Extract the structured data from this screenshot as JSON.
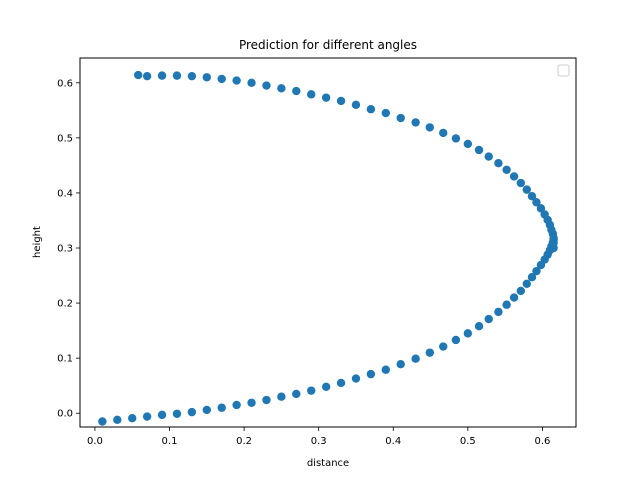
{
  "chart_data": {
    "type": "scatter",
    "title": "Prediction for different angles",
    "xlabel": "distance",
    "ylabel": "height",
    "xlim": [
      -0.02,
      0.645
    ],
    "ylim": [
      -0.025,
      0.645
    ],
    "xticks": [
      0.0,
      0.1,
      0.2,
      0.3,
      0.4,
      0.5,
      0.6
    ],
    "xtick_labels": [
      "0.0",
      "0.1",
      "0.2",
      "0.3",
      "0.4",
      "0.5",
      "0.6"
    ],
    "yticks": [
      0.0,
      0.1,
      0.2,
      0.3,
      0.4,
      0.5,
      0.6
    ],
    "ytick_labels": [
      "0.0",
      "0.1",
      "0.2",
      "0.3",
      "0.4",
      "0.5",
      "0.6"
    ],
    "grid": false,
    "legend": {
      "location": "upper right",
      "entries": []
    },
    "marker_color": "#1f77b4",
    "series": [
      {
        "x": [
          0.01,
          0.03,
          0.05,
          0.07,
          0.09,
          0.11,
          0.13,
          0.15,
          0.17,
          0.19,
          0.21,
          0.23,
          0.25,
          0.27,
          0.29,
          0.31,
          0.33,
          0.35,
          0.37,
          0.39,
          0.41,
          0.43,
          0.449,
          0.467,
          0.484,
          0.5,
          0.515,
          0.528,
          0.541,
          0.552,
          0.562,
          0.571,
          0.579,
          0.586,
          0.592,
          0.598,
          0.603,
          0.607,
          0.61,
          0.612,
          0.614,
          0.615,
          0.615,
          0.615,
          0.615,
          0.614,
          0.612,
          0.61,
          0.607,
          0.603,
          0.598,
          0.592,
          0.586,
          0.579,
          0.571,
          0.562,
          0.552,
          0.541,
          0.528,
          0.515,
          0.5,
          0.484,
          0.467,
          0.449,
          0.43,
          0.41,
          0.39,
          0.37,
          0.35,
          0.33,
          0.31,
          0.29,
          0.27,
          0.25,
          0.23,
          0.21,
          0.19,
          0.17,
          0.15,
          0.13,
          0.11,
          0.09,
          0.07,
          0.058
        ],
        "y": [
          -0.015,
          -0.012,
          -0.009,
          -0.006,
          -0.003,
          -0.001,
          0.002,
          0.006,
          0.01,
          0.015,
          0.019,
          0.024,
          0.03,
          0.035,
          0.041,
          0.048,
          0.055,
          0.063,
          0.071,
          0.079,
          0.089,
          0.099,
          0.11,
          0.121,
          0.133,
          0.145,
          0.158,
          0.171,
          0.184,
          0.197,
          0.21,
          0.222,
          0.235,
          0.247,
          0.258,
          0.269,
          0.279,
          0.288,
          0.296,
          0.303,
          0.31,
          0.315,
          0.3,
          0.309,
          0.318,
          0.326,
          0.333,
          0.342,
          0.351,
          0.361,
          0.372,
          0.383,
          0.394,
          0.406,
          0.418,
          0.43,
          0.442,
          0.454,
          0.466,
          0.478,
          0.489,
          0.499,
          0.509,
          0.519,
          0.528,
          0.536,
          0.545,
          0.552,
          0.56,
          0.567,
          0.573,
          0.579,
          0.585,
          0.59,
          0.595,
          0.6,
          0.604,
          0.607,
          0.61,
          0.612,
          0.613,
          0.613,
          0.612,
          0.614
        ]
      }
    ]
  }
}
